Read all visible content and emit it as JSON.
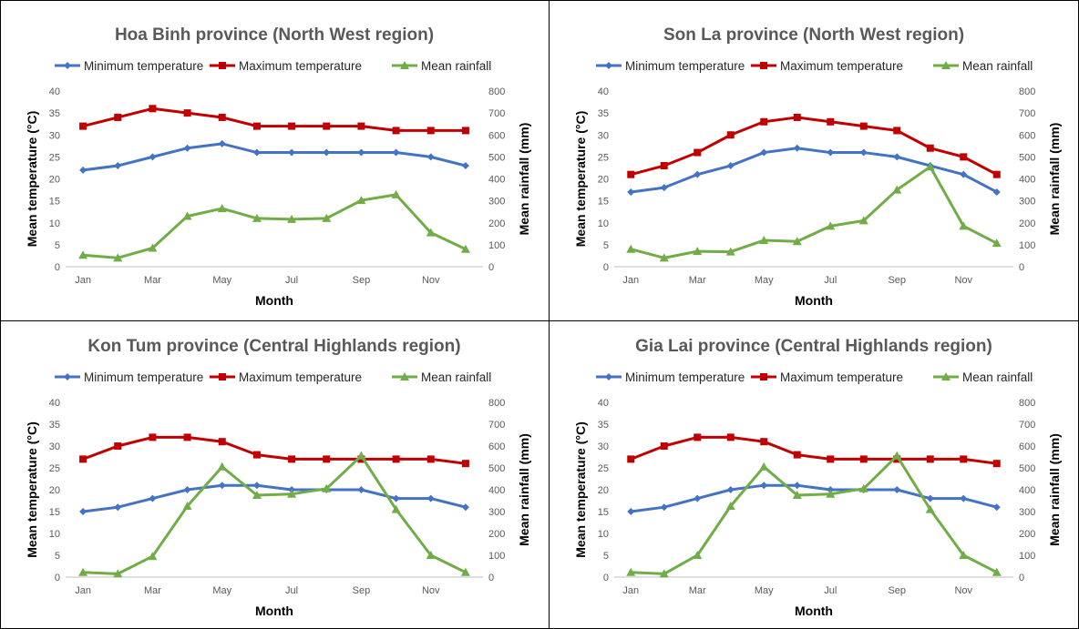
{
  "colors": {
    "min_temp": "#4472C4",
    "max_temp": "#C00000",
    "rainfall": "#70AD47",
    "axis": "#BFBFBF",
    "border": "#000000"
  },
  "chart_data": [
    {
      "type": "line",
      "title": "Hoa Binh province (North West region)",
      "xlabel": "Month",
      "ylabel": "Mean temperature (°C)",
      "y2label": "Mean rainfall (mm)",
      "ylim": [
        0,
        40
      ],
      "y2lim": [
        0,
        800
      ],
      "yticks": [
        "0",
        "5",
        "10",
        "15",
        "20",
        "25",
        "30",
        "35",
        "40"
      ],
      "y2ticks": [
        "0",
        "100",
        "200",
        "300",
        "400",
        "500",
        "600",
        "700",
        "800"
      ],
      "xticks": [
        "Jan",
        "Mar",
        "May",
        "Jul",
        "Sep",
        "Nov"
      ],
      "months": 12,
      "legend": "top",
      "series": [
        {
          "name": "Minimum temperature",
          "axis": "left",
          "marker": "diamond",
          "values": [
            22,
            23,
            25,
            27,
            28,
            26,
            26,
            26,
            26,
            26,
            25,
            23
          ]
        },
        {
          "name": "Maximum temperature",
          "axis": "left",
          "marker": "square",
          "values": [
            32,
            34,
            36,
            35,
            34,
            32,
            32,
            32,
            32,
            31,
            31,
            31
          ]
        },
        {
          "name": "Mean rainfall",
          "axis": "right",
          "marker": "triangle",
          "values": [
            53,
            40,
            85,
            230,
            265,
            220,
            216,
            220,
            302,
            328,
            155,
            80
          ]
        }
      ]
    },
    {
      "type": "line",
      "title": "Son La province (North West region)",
      "xlabel": "Month",
      "ylabel": "Mean temperature (°C)",
      "y2label": "Mean rainfall (mm)",
      "ylim": [
        0,
        40
      ],
      "y2lim": [
        0,
        800
      ],
      "yticks": [
        "0",
        "5",
        "10",
        "15",
        "20",
        "25",
        "30",
        "35",
        "40"
      ],
      "y2ticks": [
        "0",
        "100",
        "200",
        "300",
        "400",
        "500",
        "600",
        "700",
        "800"
      ],
      "xticks": [
        "Jan",
        "Mar",
        "May",
        "Jul",
        "Sep",
        "Nov"
      ],
      "months": 12,
      "legend": "top",
      "series": [
        {
          "name": "Minimum temperature",
          "axis": "left",
          "marker": "diamond",
          "values": [
            17,
            18,
            21,
            23,
            26,
            27,
            26,
            26,
            25,
            23,
            21,
            17
          ]
        },
        {
          "name": "Maximum temperature",
          "axis": "left",
          "marker": "square",
          "values": [
            21,
            23,
            26,
            30,
            33,
            34,
            33,
            32,
            31,
            27,
            25,
            21
          ]
        },
        {
          "name": "Mean rainfall",
          "axis": "right",
          "marker": "triangle",
          "values": [
            80,
            40,
            70,
            68,
            120,
            115,
            185,
            210,
            350,
            455,
            185,
            107
          ]
        }
      ]
    },
    {
      "type": "line",
      "title": "Kon Tum province (Central Highlands region)",
      "xlabel": "Month",
      "ylabel": "Mean temperature (°C)",
      "y2label": "Mean rainfall (mm)",
      "ylim": [
        0,
        40
      ],
      "y2lim": [
        0,
        800
      ],
      "yticks": [
        "0",
        "5",
        "10",
        "15",
        "20",
        "25",
        "30",
        "35",
        "40"
      ],
      "y2ticks": [
        "0",
        "100",
        "200",
        "300",
        "400",
        "500",
        "600",
        "700",
        "800"
      ],
      "xticks": [
        "Jan",
        "Mar",
        "May",
        "Jul",
        "Sep",
        "Nov"
      ],
      "months": 12,
      "legend": "top",
      "series": [
        {
          "name": "Minimum temperature",
          "axis": "left",
          "marker": "diamond",
          "values": [
            15,
            16,
            18,
            20,
            21,
            21,
            20,
            20,
            20,
            18,
            18,
            16
          ]
        },
        {
          "name": "Maximum temperature",
          "axis": "left",
          "marker": "square",
          "values": [
            27,
            30,
            32,
            32,
            31,
            28,
            27,
            27,
            27,
            27,
            27,
            26
          ]
        },
        {
          "name": "Mean rainfall",
          "axis": "right",
          "marker": "triangle",
          "values": [
            22,
            15,
            95,
            325,
            505,
            375,
            380,
            405,
            555,
            310,
            100,
            22
          ]
        }
      ]
    },
    {
      "type": "line",
      "title": "Gia Lai province (Central Highlands region)",
      "xlabel": "Month",
      "ylabel": "Mean temperature (°C)",
      "y2label": "Mean rainfall (mm)",
      "ylim": [
        0,
        40
      ],
      "y2lim": [
        0,
        800
      ],
      "yticks": [
        "0",
        "5",
        "10",
        "15",
        "20",
        "25",
        "30",
        "35",
        "40"
      ],
      "y2ticks": [
        "0",
        "100",
        "200",
        "300",
        "400",
        "500",
        "600",
        "700",
        "800"
      ],
      "xticks": [
        "Jan",
        "Mar",
        "May",
        "Jul",
        "Sep",
        "Nov"
      ],
      "months": 12,
      "legend": "top",
      "series": [
        {
          "name": "Minimum temperature",
          "axis": "left",
          "marker": "diamond",
          "values": [
            15,
            16,
            18,
            20,
            21,
            21,
            20,
            20,
            20,
            18,
            18,
            16
          ]
        },
        {
          "name": "Maximum temperature",
          "axis": "left",
          "marker": "square",
          "values": [
            27,
            30,
            32,
            32,
            31,
            28,
            27,
            27,
            27,
            27,
            27,
            26
          ]
        },
        {
          "name": "Mean rainfall",
          "axis": "right",
          "marker": "triangle",
          "values": [
            22,
            15,
            100,
            325,
            505,
            375,
            380,
            405,
            555,
            310,
            100,
            22
          ]
        }
      ]
    }
  ]
}
